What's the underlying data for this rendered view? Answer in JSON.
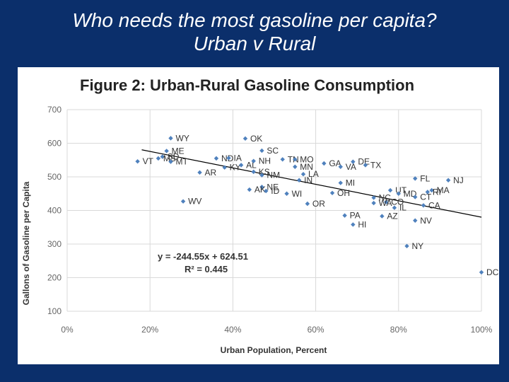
{
  "slide": {
    "title_line1": "Who needs the most gasoline per capita?",
    "title_line2": "Urban v Rural"
  },
  "chart_data": {
    "type": "scatter",
    "title": "Figure 2: Urban-Rural Gasoline Consumption",
    "xlabel": "Urban Population, Percent",
    "ylabel": "Gallons of Gasoline per Capita",
    "xlim": [
      0,
      1
    ],
    "ylim": [
      100,
      700
    ],
    "x_ticks": [
      0,
      0.2,
      0.4,
      0.6,
      0.8,
      1.0
    ],
    "x_tick_labels": [
      "0%",
      "20%",
      "40%",
      "60%",
      "80%",
      "100%"
    ],
    "y_ticks": [
      100,
      200,
      300,
      400,
      500,
      600,
      700
    ],
    "y_tick_labels": [
      "100",
      "200",
      "300",
      "400",
      "500",
      "600",
      "700"
    ],
    "grid": true,
    "marker_color": "#4f81bd",
    "trendline": {
      "slope": -244.55,
      "intercept": 624.51,
      "x_range": [
        0.18,
        1.0
      ],
      "equation": "y = -244.55x + 624.51",
      "r_squared": "R² = 0.445"
    },
    "points": [
      {
        "label": "VT",
        "x": 0.17,
        "y": 546
      },
      {
        "label": "WY",
        "x": 0.25,
        "y": 615
      },
      {
        "label": "ME",
        "x": 0.24,
        "y": 577
      },
      {
        "label": "SD",
        "x": 0.23,
        "y": 560
      },
      {
        "label": "MS",
        "x": 0.22,
        "y": 555
      },
      {
        "label": "MT",
        "x": 0.25,
        "y": 545
      },
      {
        "label": "AR",
        "x": 0.32,
        "y": 513
      },
      {
        "label": "WV",
        "x": 0.28,
        "y": 427
      },
      {
        "label": "OK",
        "x": 0.43,
        "y": 614
      },
      {
        "label": "SC",
        "x": 0.47,
        "y": 578
      },
      {
        "label": "ND",
        "x": 0.36,
        "y": 555
      },
      {
        "label": "IA",
        "x": 0.39,
        "y": 556
      },
      {
        "label": "KY",
        "x": 0.38,
        "y": 528
      },
      {
        "label": "AL",
        "x": 0.42,
        "y": 535
      },
      {
        "label": "NH",
        "x": 0.45,
        "y": 547
      },
      {
        "label": "TN",
        "x": 0.52,
        "y": 552
      },
      {
        "label": "MO",
        "x": 0.55,
        "y": 552
      },
      {
        "label": "MN",
        "x": 0.55,
        "y": 530
      },
      {
        "label": "KS",
        "x": 0.45,
        "y": 515
      },
      {
        "label": "NM",
        "x": 0.47,
        "y": 505
      },
      {
        "label": "LA",
        "x": 0.57,
        "y": 508
      },
      {
        "label": "IN",
        "x": 0.56,
        "y": 490
      },
      {
        "label": "NE",
        "x": 0.47,
        "y": 470
      },
      {
        "label": "AK",
        "x": 0.44,
        "y": 462
      },
      {
        "label": "ID",
        "x": 0.48,
        "y": 458
      },
      {
        "label": "WI",
        "x": 0.53,
        "y": 450
      },
      {
        "label": "OR",
        "x": 0.58,
        "y": 420
      },
      {
        "label": "GA",
        "x": 0.62,
        "y": 540
      },
      {
        "label": "VA",
        "x": 0.66,
        "y": 530
      },
      {
        "label": "DE",
        "x": 0.69,
        "y": 545
      },
      {
        "label": "TX",
        "x": 0.72,
        "y": 535
      },
      {
        "label": "MI",
        "x": 0.66,
        "y": 482
      },
      {
        "label": "OH",
        "x": 0.64,
        "y": 452
      },
      {
        "label": "NC",
        "x": 0.74,
        "y": 438
      },
      {
        "label": "CO",
        "x": 0.77,
        "y": 425
      },
      {
        "label": "WA",
        "x": 0.74,
        "y": 422
      },
      {
        "label": "IL",
        "x": 0.79,
        "y": 408
      },
      {
        "label": "PA",
        "x": 0.67,
        "y": 385
      },
      {
        "label": "HI",
        "x": 0.69,
        "y": 358
      },
      {
        "label": "AZ",
        "x": 0.76,
        "y": 383
      },
      {
        "label": "UT",
        "x": 0.78,
        "y": 460
      },
      {
        "label": "MD",
        "x": 0.8,
        "y": 450
      },
      {
        "label": "CT",
        "x": 0.84,
        "y": 440
      },
      {
        "label": "FL",
        "x": 0.84,
        "y": 495
      },
      {
        "label": "NJ",
        "x": 0.92,
        "y": 490
      },
      {
        "label": "MA",
        "x": 0.88,
        "y": 460
      },
      {
        "label": "RI",
        "x": 0.87,
        "y": 455
      },
      {
        "label": "CA",
        "x": 0.86,
        "y": 415
      },
      {
        "label": "NV",
        "x": 0.84,
        "y": 370
      },
      {
        "label": "NY",
        "x": 0.82,
        "y": 294
      },
      {
        "label": "DC",
        "x": 1.0,
        "y": 216
      }
    ]
  }
}
